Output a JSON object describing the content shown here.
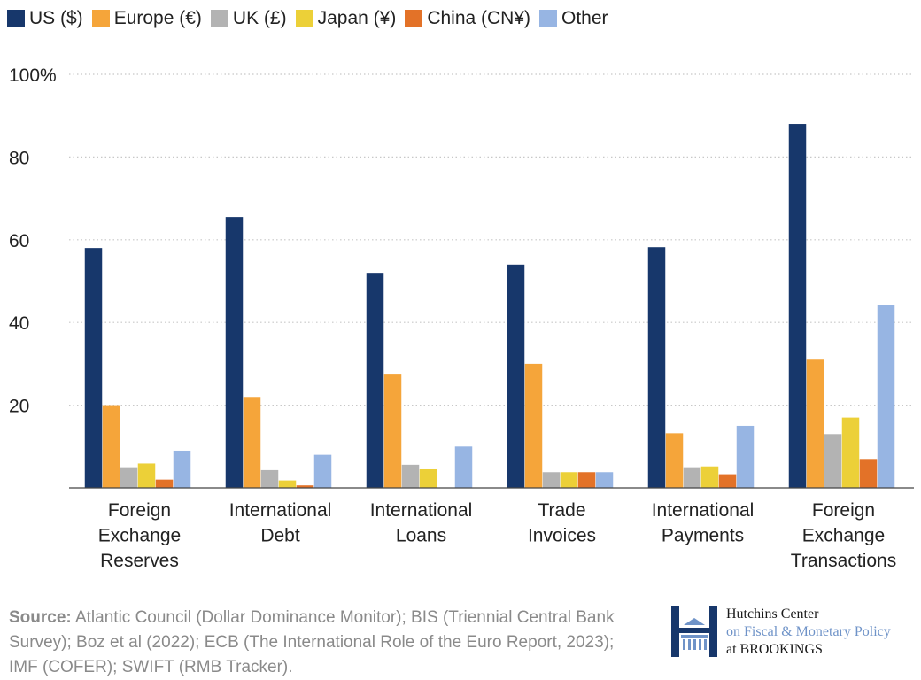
{
  "chart_data": {
    "type": "bar",
    "categories": [
      [
        "Foreign",
        "Exchange",
        "Reserves"
      ],
      [
        "International",
        "Debt"
      ],
      [
        "International",
        "Loans"
      ],
      [
        "Trade",
        "Invoices"
      ],
      [
        "International",
        "Payments"
      ],
      [
        "Foreign",
        "Exchange",
        "Transactions"
      ]
    ],
    "series": [
      {
        "name": "US ($)",
        "color": "#17376b",
        "values": [
          58,
          65.5,
          52,
          54,
          58.2,
          88
        ]
      },
      {
        "name": "Europe (€)",
        "color": "#f5a53a",
        "values": [
          20,
          22,
          27.6,
          30,
          13.2,
          31
        ]
      },
      {
        "name": "UK (£)",
        "color": "#b3b3b3",
        "values": [
          5,
          4.3,
          5.6,
          3.8,
          5,
          13
        ]
      },
      {
        "name": "Japan (¥)",
        "color": "#ecd038",
        "values": [
          5.9,
          1.8,
          4.5,
          3.8,
          5.2,
          17
        ]
      },
      {
        "name": "China (CN¥)",
        "color": "#e37228",
        "values": [
          2,
          0.6,
          0,
          3.8,
          3.3,
          7
        ]
      },
      {
        "name": "Other",
        "color": "#97b5e3",
        "values": [
          9,
          8,
          10,
          3.8,
          15,
          44.3
        ]
      }
    ],
    "yticks": [
      {
        "value": 20,
        "label": "20"
      },
      {
        "value": 40,
        "label": "40"
      },
      {
        "value": 60,
        "label": "60"
      },
      {
        "value": 80,
        "label": "80"
      },
      {
        "value": 100,
        "label": "100%"
      }
    ],
    "ylim": [
      0,
      100
    ],
    "grid": true,
    "legend": "top-left",
    "title": "",
    "xlabel": "",
    "ylabel": ""
  },
  "source": {
    "label": "Source:",
    "text": " Atlantic Council (Dollar Dominance Monitor); BIS (Triennial Central Bank Survey); Boz et al (2022); ECB (The International Role of the Euro Report, 2023); IMF (COFER); SWIFT (RMB Tracker)."
  },
  "logo": {
    "line1": "Hutchins Center",
    "line2": "on Fiscal & Monetary Policy",
    "line3": "at BROOKINGS"
  }
}
